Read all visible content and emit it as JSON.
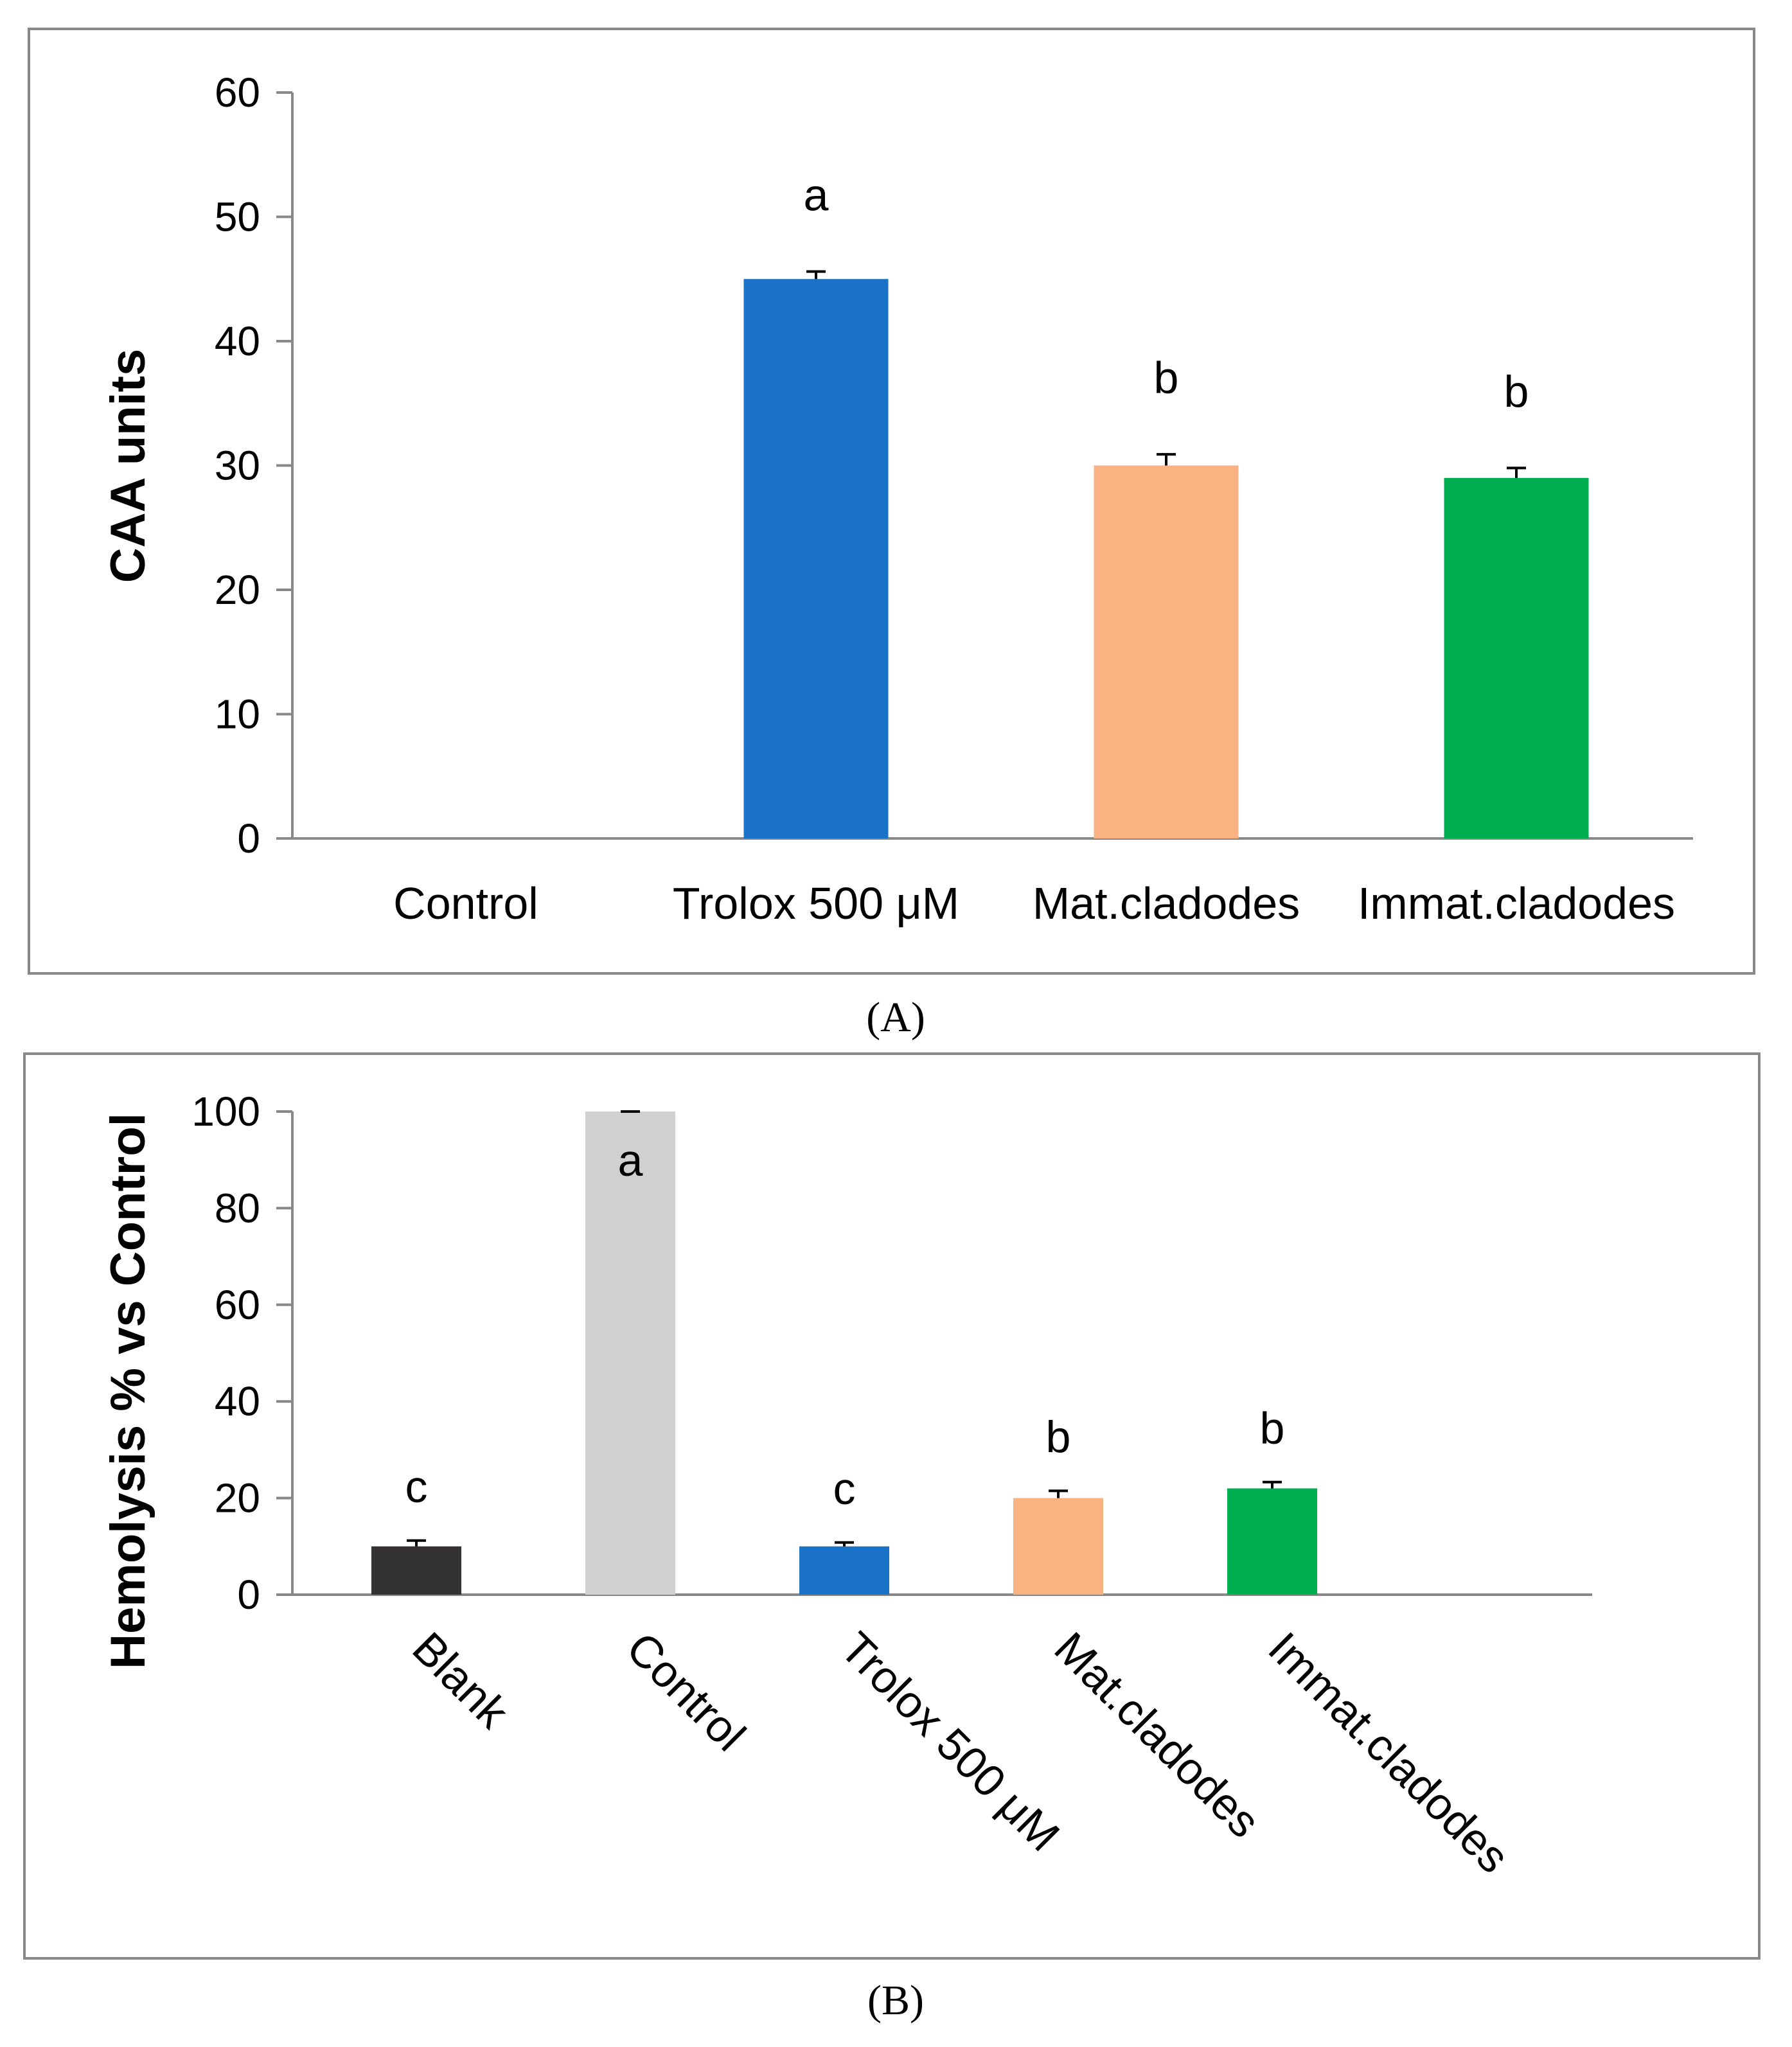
{
  "chart_data": [
    {
      "type": "bar",
      "panel_label": "(A)",
      "ylabel": "CAA units",
      "xlabel": "",
      "ylim": [
        0,
        60
      ],
      "yticks": [
        0,
        10,
        20,
        30,
        40,
        50,
        60
      ],
      "grid": false,
      "categories": [
        "Control",
        "Trolox 500 μM",
        "Mat.cladodes",
        "Immat.cladodes"
      ],
      "values": [
        0,
        45,
        30,
        29
      ],
      "errors": [
        0,
        0.6,
        0.9,
        0.8
      ],
      "significance": [
        "",
        "a",
        "b",
        "b"
      ],
      "colors": [
        "#1a73c9",
        "#1a73c9",
        "#fbb283",
        "#00b050"
      ]
    },
    {
      "type": "bar",
      "panel_label": "(B)",
      "ylabel": "Hemolysis % vs Control",
      "xlabel": "",
      "ylim": [
        0,
        100
      ],
      "yticks": [
        0,
        20,
        40,
        60,
        80,
        100
      ],
      "grid": false,
      "categories": [
        "Blank",
        "Control",
        "Trolox 500 μM",
        "Mat.cladodes",
        "Immat.cladodes"
      ],
      "values": [
        10,
        100,
        10,
        20,
        22
      ],
      "errors": [
        1.2,
        0,
        0.8,
        1.5,
        1.3
      ],
      "significance": [
        "c",
        "a",
        "c",
        "b",
        "b"
      ],
      "colors": [
        "#333132",
        "#d1d0ce",
        "#1a73c9",
        "#fbb283",
        "#00b050"
      ]
    }
  ]
}
